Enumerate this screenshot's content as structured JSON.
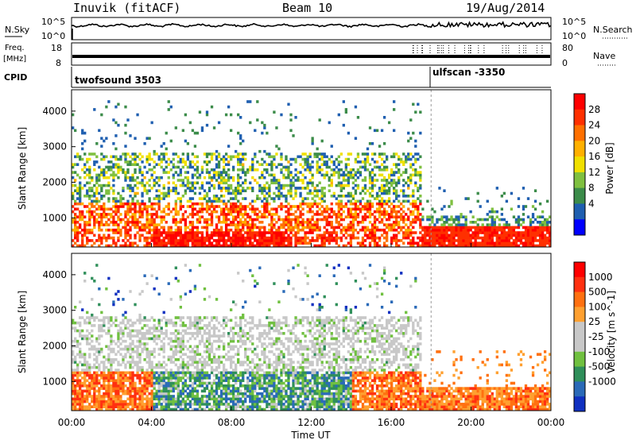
{
  "header": {
    "station": "Inuvik (fitACF)",
    "beam": "Beam 10",
    "date": "19/Aug/2014"
  },
  "noise_panel": {
    "left_label": "N.Sky",
    "right_label": "N.Search",
    "left_ticks": [
      "10^5",
      "10^0"
    ],
    "right_ticks": [
      "10^5",
      "10^0"
    ]
  },
  "freq_panel": {
    "left_label_top": "Freq.",
    "left_label_unit": "[MHz]",
    "right_label": "Nave",
    "left_ticks": [
      "18",
      "8"
    ],
    "right_ticks": [
      "80",
      "0"
    ]
  },
  "cpid": {
    "label": "CPID",
    "segments": [
      {
        "text": "twofsound 3503",
        "start_hour": 0
      },
      {
        "text": "ulfscan -3350",
        "start_hour": 18
      }
    ]
  },
  "time_axis": {
    "label": "Time UT",
    "ticks": [
      "00:00",
      "04:00",
      "08:00",
      "12:00",
      "16:00",
      "20:00",
      "00:00"
    ],
    "range_hours": [
      0,
      24
    ]
  },
  "power_panel": {
    "ylabel": "Slant Range [km]",
    "yticks": [
      "1000",
      "2000",
      "3000",
      "4000"
    ],
    "colorbar_label": "Power [dB]",
    "colorbar_ticks": [
      "4",
      "8",
      "12",
      "16",
      "20",
      "24",
      "28"
    ],
    "colors": [
      "#0000ff",
      "#1f5fb0",
      "#3c8c4a",
      "#7fc040",
      "#f0e000",
      "#ffb000",
      "#ff7000",
      "#ff3000",
      "#ff0000"
    ]
  },
  "velocity_panel": {
    "ylabel": "Slant Range [km]",
    "yticks": [
      "1000",
      "2000",
      "3000",
      "4000"
    ],
    "colorbar_label": "Velocity [m s^-1]",
    "colorbar_ticks": [
      "1000",
      "500",
      "100",
      "25",
      "-25",
      "-100",
      "-500",
      "-1000"
    ],
    "colors": [
      "#1030c0",
      "#2a6ab8",
      "#2f8f5a",
      "#70c040",
      "#c8c8c8",
      "#c8c8c8",
      "#ffa030",
      "#ff7010",
      "#ff3010",
      "#ff0000"
    ]
  },
  "chart_data": {
    "type": "heatmap",
    "x": {
      "label": "Time UT",
      "range_hours": [
        0,
        24
      ],
      "ticks": [
        "00:00",
        "04:00",
        "08:00",
        "12:00",
        "16:00",
        "20:00",
        "00:00"
      ]
    },
    "y": {
      "label": "Slant Range [km]",
      "range_km": [
        180,
        4600
      ],
      "ticks": [
        1000,
        2000,
        3000,
        4000
      ]
    },
    "power_db_range": [
      0,
      30
    ],
    "velocity_range": [
      -1200,
      1200
    ],
    "mode_change_hour": 18
  }
}
